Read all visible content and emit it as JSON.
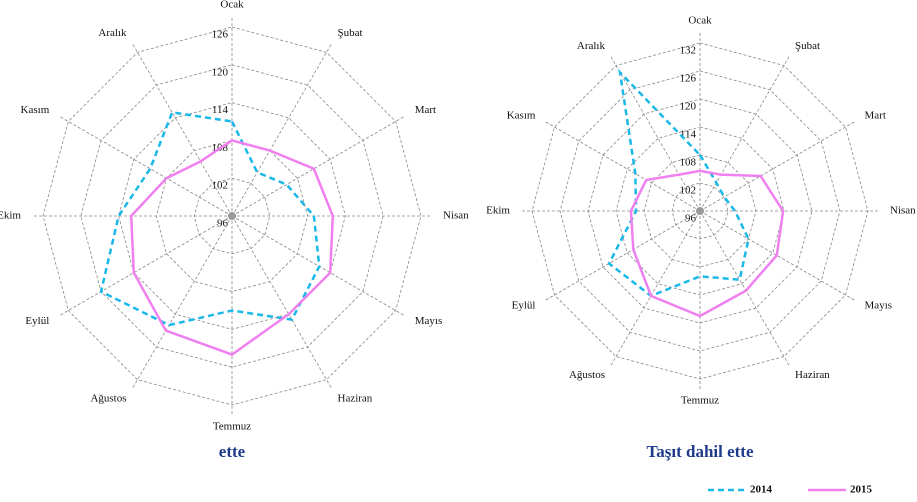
{
  "chart_data": [
    {
      "type": "radar",
      "title": "ette",
      "categories": [
        "Ocak",
        "Şubat",
        "Mart",
        "Nisan",
        "Mayıs",
        "Haziran",
        "Temmuz",
        "Ağustos",
        "Eylül",
        "Ekim",
        "Kasım",
        "Aralık"
      ],
      "ylim": [
        96,
        126
      ],
      "yticks": [
        96,
        102,
        108,
        114,
        120,
        126
      ],
      "grid": true,
      "series": [
        {
          "name": "2014",
          "color": "#1ab8e8",
          "values": [
            111,
            104,
            106,
            109,
            112,
            115,
            111,
            116,
            120,
            114,
            111,
            115
          ]
        },
        {
          "name": "2015",
          "color": "#f080f0",
          "values": [
            108,
            108,
            111,
            112,
            114,
            114,
            118,
            117,
            114,
            112,
            108,
            106
          ]
        }
      ]
    },
    {
      "type": "radar",
      "title": "Taşıt dahil ette",
      "categories": [
        "Ocak",
        "Şubat",
        "Mart",
        "Nisan",
        "Mayıs",
        "Haziran",
        "Temmuz",
        "Ağustos",
        "Eylül",
        "Ekim",
        "Kasım",
        "Aralık"
      ],
      "ylim": [
        96,
        132
      ],
      "yticks": [
        96,
        102,
        108,
        114,
        120,
        126,
        132
      ],
      "grid": true,
      "series": [
        {
          "name": "2014",
          "color": "#1ab8e8",
          "values": [
            108,
            103,
            102,
            103.5,
            108,
            113,
            110,
            117,
            118.5,
            109.7,
            112,
            130.3
          ]
        },
        {
          "name": "2015",
          "color": "#f080f0",
          "values": [
            104.6,
            105,
            111,
            113.8,
            115,
            115.7,
            118.5,
            117,
            112.5,
            110.8,
            109.3,
            105
          ]
        }
      ]
    }
  ]
}
